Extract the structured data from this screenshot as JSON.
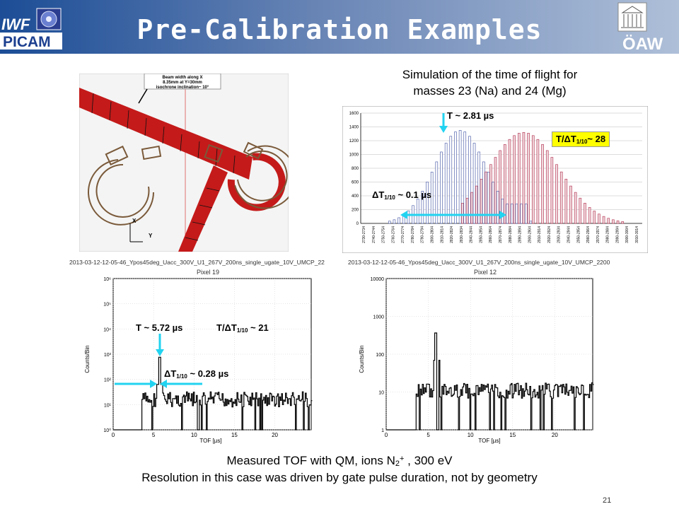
{
  "header": {
    "title": "Pre-Calibration Examples",
    "left_logo_text_1": "IWF",
    "left_logo_text_2": "PICAM",
    "right_logo_text": "ÖAW"
  },
  "beam_figure": {
    "note_line1": "Beam width along X",
    "note_line2": "8.35mm at Y=30mm",
    "note_line3": "isochrone inclination~ 10°",
    "axis_x": "X",
    "axis_y": "Y"
  },
  "simulation": {
    "caption_line1": "Simulation of the time of flight for",
    "caption_line2": "masses 23 (Na) and 24 (Mg)",
    "peak_label": "T ~ 2.81 µs",
    "width_label_prefix": "ΔT",
    "width_label_sub": "1/10",
    "width_label_suffix": " ~ 0.1 µs",
    "ratio_prefix": "T/ΔT",
    "ratio_sub": "1/10",
    "ratio_suffix": "~ 28",
    "y_ticks": [
      "1600",
      "1400",
      "1200",
      "1000",
      "800",
      "600",
      "400",
      "200",
      "0"
    ],
    "x_ticks": [
      "2730-2734",
      "2740-2744",
      "2750-2754",
      "2760-2764",
      "2770-2774",
      "2780-2784",
      "2790-2794",
      "2800-2804",
      "2810-2814",
      "2820-2824",
      "2830-2834",
      "2840-2844",
      "2850-2854",
      "2860-2864",
      "2870-2874",
      "2880-2884",
      "2890-2894",
      "2900-2904",
      "2910-2914",
      "2920-2924",
      "2930-2934",
      "2940-2944",
      "2950-2954",
      "2960-2964",
      "2970-2974",
      "2980-2984",
      "2990-2994",
      "3000-3004",
      "3010-3014"
    ]
  },
  "tof_left": {
    "filename": "2013-03-12-12-05-46_Ypos45deg_Uacc_300V_U1_267V_200ns_single_ugate_10V_UMCP_22",
    "pixel": "Pixel 19",
    "y_label": "Counts/Bin",
    "x_label": "TOF [µs]",
    "y_ticks": [
      "10⁶",
      "10⁵",
      "10⁴",
      "10³",
      "10²",
      "10¹",
      "10⁰"
    ],
    "x_ticks": [
      "0",
      "5",
      "10",
      "15",
      "20"
    ],
    "peak_label": "T ~ 5.72 µs",
    "ratio_prefix": "T/ΔT",
    "ratio_sub": "1/10",
    "ratio_suffix": " ~ 21",
    "width_prefix": "ΔT",
    "width_sub": "1/10",
    "width_suffix": " ~ 0.28 µs"
  },
  "tof_right": {
    "filename": "2013-03-12-12-05-46_Ypos45deg_Uacc_300V_U1_267V_200ns_single_ugate_10V_UMCP_2200",
    "pixel": "Pixel 12",
    "y_label": "Counts/Bin",
    "x_label": "TOF [µs]",
    "y_ticks": [
      "10000",
      "1000",
      "100",
      "10",
      "1"
    ],
    "x_ticks": [
      "0",
      "5",
      "10",
      "15",
      "20"
    ]
  },
  "footer": {
    "line1_prefix": "Measured TOF with QM, ions N",
    "line1_sub": "2",
    "line1_sup": "+",
    "line1_suffix": " , 300 eV",
    "line2": "Resolution in this case was driven by gate pulse duration, not by geometry",
    "page_number": "21"
  },
  "colors": {
    "header_start": "#1c4d96",
    "header_end": "#aebfd8",
    "beam_red": "#c41a1a",
    "cyan": "#22d3f0",
    "yellow": "#ffff00",
    "bar_blue": "#3b4ea0",
    "bar_red": "#b02a4a"
  }
}
